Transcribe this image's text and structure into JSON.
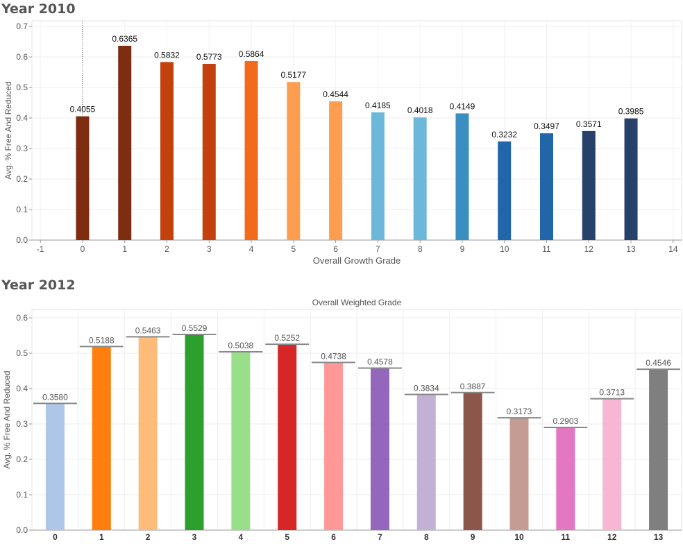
{
  "chart_data": [
    {
      "type": "bar",
      "title": "Year 2010",
      "xlabel": "Overall Growth Grade",
      "ylabel": "Avg. % Free And Reduced",
      "x_ticks": [
        -1,
        0,
        1,
        2,
        3,
        4,
        5,
        6,
        7,
        8,
        9,
        10,
        11,
        12,
        13,
        14
      ],
      "xlim": [
        -1.2,
        14.2
      ],
      "ylim": [
        0,
        0.7
      ],
      "y_ticks": [
        0.0,
        0.1,
        0.2,
        0.3,
        0.4,
        0.5,
        0.6,
        0.7
      ],
      "grid": true,
      "x": [
        0,
        1,
        2,
        3,
        4,
        5,
        6,
        7,
        8,
        9,
        10,
        11,
        12,
        13
      ],
      "values": [
        0.4055,
        0.6365,
        0.5832,
        0.5773,
        0.5864,
        0.5177,
        0.4544,
        0.4185,
        0.4018,
        0.4149,
        0.3232,
        0.3497,
        0.3571,
        0.3985
      ],
      "labels": [
        "0.4055",
        "0.6365",
        "0.5832",
        "0.5773",
        "0.5864",
        "0.5177",
        "0.4544",
        "0.4185",
        "0.4018",
        "0.4149",
        "0.3232",
        "0.3497",
        "0.3571",
        "0.3985"
      ],
      "colors": [
        "#7f2d11",
        "#7f2d11",
        "#c2410c",
        "#c2410c",
        "#f26b1d",
        "#fd9d50",
        "#fd9d50",
        "#6cb8da",
        "#6cb8da",
        "#3b8ec0",
        "#2066a8",
        "#2066a8",
        "#27416a",
        "#27416a"
      ]
    },
    {
      "type": "bar",
      "title": "Year 2012",
      "subtitle": "Overall Weighted Grade",
      "ylabel": "Avg. % Free And Reduced",
      "categories": [
        "0",
        "1",
        "2",
        "3",
        "4",
        "5",
        "6",
        "7",
        "8",
        "9",
        "10",
        "11",
        "12",
        "13"
      ],
      "values": [
        0.358,
        0.5188,
        0.5463,
        0.5529,
        0.5038,
        0.5252,
        0.4738,
        0.4578,
        0.3834,
        0.3887,
        0.3173,
        0.2903,
        0.3713,
        0.4546
      ],
      "labels": [
        "0.3580",
        "0.5188",
        "0.5463",
        "0.5529",
        "0.5038",
        "0.5252",
        "0.4738",
        "0.4578",
        "0.3834",
        "0.3887",
        "0.3173",
        "0.2903",
        "0.3713",
        "0.4546"
      ],
      "ylim": [
        0,
        0.6
      ],
      "y_ticks": [
        0.0,
        0.1,
        0.2,
        0.3,
        0.4,
        0.5,
        0.6
      ],
      "grid": true,
      "reference_lines": true,
      "colors": [
        "#aec7e8",
        "#ff7f0e",
        "#ffbb78",
        "#2ca02c",
        "#98df8a",
        "#d62728",
        "#ff9896",
        "#9467bd",
        "#c5b0d5",
        "#8c564b",
        "#c49c94",
        "#e377c2",
        "#f7b6d2",
        "#7f7f7f"
      ]
    }
  ]
}
